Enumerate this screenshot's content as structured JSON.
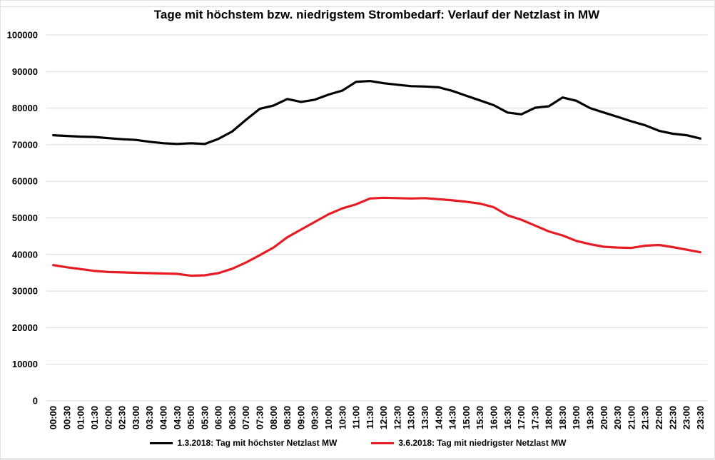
{
  "page": {
    "background_color": "#ffffff",
    "frame_color": "#d9d9d9"
  },
  "chart_data": {
    "type": "line",
    "title": "Tage mit höchstem bzw. niedrigstem Strombedarf: Verlauf der Netzlast in MW",
    "xlabel": "",
    "ylabel": "",
    "ylim": [
      0,
      100000
    ],
    "ytick_step": 10000,
    "y_tick_labels": [
      "0",
      "10000",
      "20000",
      "30000",
      "40000",
      "50000",
      "60000",
      "70000",
      "80000",
      "90000",
      "100000"
    ],
    "grid": "horizontal",
    "grid_color": "#d9d9d9",
    "legend_position": "bottom",
    "x_labels": [
      "00:00",
      "00:30",
      "01:00",
      "01:30",
      "02:00",
      "02:30",
      "03:00",
      "03:30",
      "04:00",
      "04:30",
      "05:00",
      "05:30",
      "06:00",
      "06:30",
      "07:00",
      "07:30",
      "08:00",
      "08:30",
      "09:00",
      "09:30",
      "10:00",
      "10:30",
      "11:00",
      "11:30",
      "12:00",
      "12:30",
      "13:00",
      "13:30",
      "14:00",
      "14:30",
      "15:00",
      "15:30",
      "16:00",
      "16:30",
      "17:00",
      "17:30",
      "18:00",
      "18:30",
      "19:00",
      "19:30",
      "20:00",
      "20:30",
      "21:00",
      "21:30",
      "22:00",
      "22:30",
      "23:00",
      "23:30"
    ],
    "series": [
      {
        "name": "1.3.2018: Tag mit höchster Netzlast MW",
        "color": "#000000",
        "values": [
          72600,
          72400,
          72200,
          72100,
          71800,
          71500,
          71300,
          70800,
          70400,
          70200,
          70400,
          70200,
          71600,
          73600,
          76800,
          79800,
          80700,
          82500,
          81700,
          82300,
          83700,
          84800,
          87200,
          87400,
          86800,
          86400,
          86000,
          85900,
          85700,
          84700,
          83400,
          82100,
          80800,
          78800,
          78300,
          80100,
          80500,
          82900,
          82000,
          80000,
          78800,
          77600,
          76400,
          75300,
          73800,
          73000,
          72600,
          71700
        ]
      },
      {
        "name": "3.6.2018: Tag mit niedrigster Netzlast MW",
        "color": "#e61c24",
        "values": [
          37100,
          36500,
          36000,
          35500,
          35200,
          35100,
          35000,
          34900,
          34800,
          34700,
          34200,
          34300,
          34900,
          36100,
          37800,
          39800,
          41900,
          44700,
          46800,
          48900,
          51000,
          52600,
          53700,
          55300,
          55500,
          55400,
          55300,
          55400,
          55100,
          54800,
          54400,
          53900,
          52900,
          50700,
          49500,
          47900,
          46300,
          45200,
          43700,
          42800,
          42100,
          41900,
          41800,
          42400,
          42600,
          42000,
          41300,
          40600
        ]
      }
    ]
  }
}
